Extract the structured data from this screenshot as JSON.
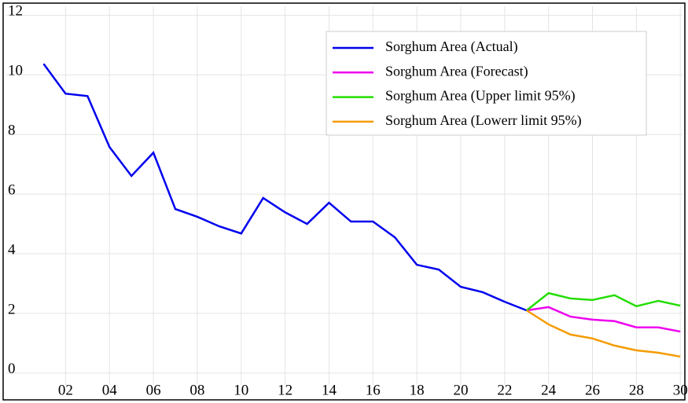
{
  "chart_data": {
    "type": "line",
    "x": [
      1,
      2,
      3,
      4,
      5,
      6,
      7,
      8,
      9,
      10,
      11,
      12,
      13,
      14,
      15,
      16,
      17,
      18,
      19,
      20,
      21,
      22,
      23,
      24,
      25,
      26,
      27,
      28,
      29,
      30
    ],
    "series": [
      {
        "name": "Sorghum Area (Actual)",
        "color": "#0000ee",
        "values": [
          10.37,
          9.37,
          9.29,
          7.58,
          6.61,
          7.39,
          5.5,
          5.24,
          4.92,
          4.68,
          5.87,
          5.39,
          5.0,
          5.71,
          5.08,
          5.08,
          4.55,
          3.63,
          3.47,
          2.89,
          2.71,
          2.39,
          2.1,
          null,
          null,
          null,
          null,
          null,
          null,
          null
        ]
      },
      {
        "name": "Sorghum Area (Forecast)",
        "color": "#ee00ee",
        "values": [
          null,
          null,
          null,
          null,
          null,
          null,
          null,
          null,
          null,
          null,
          null,
          null,
          null,
          null,
          null,
          null,
          null,
          null,
          null,
          null,
          null,
          null,
          2.1,
          2.21,
          1.89,
          1.79,
          1.74,
          1.53,
          1.53,
          1.39
        ]
      },
      {
        "name": "Sorghum Area (Upper limit 95%)",
        "color": "#22dd00",
        "values": [
          null,
          null,
          null,
          null,
          null,
          null,
          null,
          null,
          null,
          null,
          null,
          null,
          null,
          null,
          null,
          null,
          null,
          null,
          null,
          null,
          null,
          null,
          2.1,
          2.68,
          2.5,
          2.45,
          2.61,
          2.24,
          2.42,
          2.26
        ]
      },
      {
        "name": "Sorghum Area (Lowerr limit 95%)",
        "color": "#f59b00",
        "values": [
          null,
          null,
          null,
          null,
          null,
          null,
          null,
          null,
          null,
          null,
          null,
          null,
          null,
          null,
          null,
          null,
          null,
          null,
          null,
          null,
          null,
          null,
          2.1,
          1.63,
          1.29,
          1.16,
          0.92,
          0.76,
          0.68,
          0.55
        ]
      }
    ],
    "xlim": [
      -0.7,
      30.1
    ],
    "xticks": [
      {
        "value": 2,
        "label": "02"
      },
      {
        "value": 4,
        "label": "04"
      },
      {
        "value": 6,
        "label": "06"
      },
      {
        "value": 8,
        "label": "08"
      },
      10,
      12,
      14,
      16,
      18,
      20,
      22,
      24,
      26,
      28,
      30
    ],
    "ylim": [
      -0.4,
      12.3
    ],
    "yticks": [
      0,
      2,
      4,
      6,
      8,
      10,
      12
    ],
    "grid": true,
    "legend": "top-right"
  }
}
